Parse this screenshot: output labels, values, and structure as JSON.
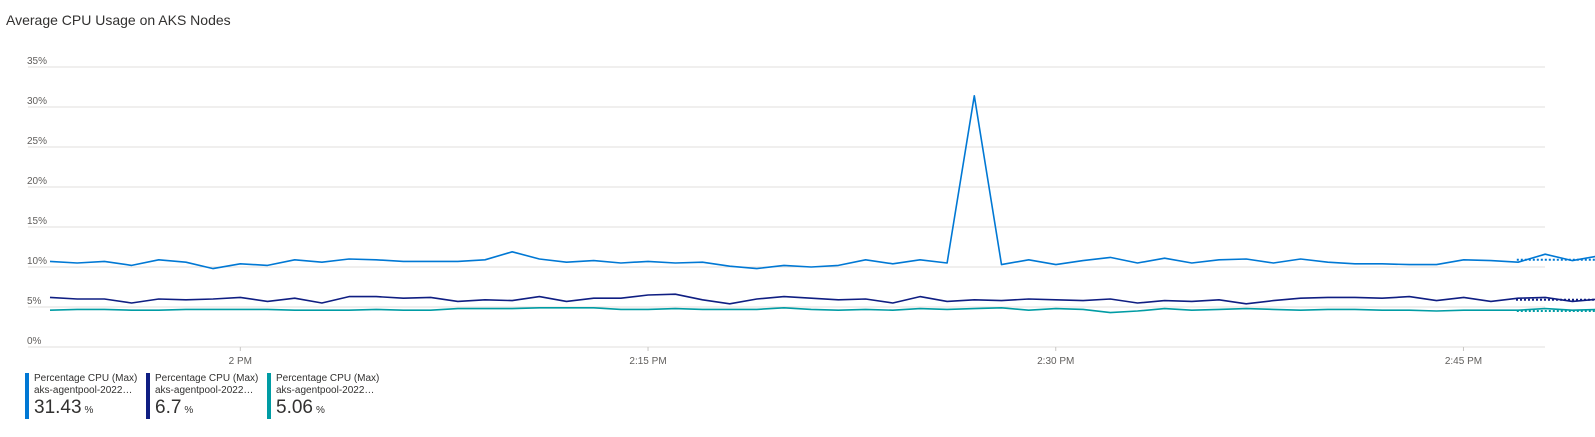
{
  "chart_data": {
    "type": "line",
    "title": "Average CPU Usage on AKS Nodes",
    "yticks": [
      "0%",
      "5%",
      "10%",
      "15%",
      "20%",
      "25%",
      "30%",
      "35%"
    ],
    "ylim": [
      0,
      35
    ],
    "xticks": [
      {
        "t": 14.0,
        "label": "2 PM"
      },
      {
        "t": 14.25,
        "label": "2:15 PM"
      },
      {
        "t": 14.5,
        "label": "2:30 PM"
      },
      {
        "t": 14.75,
        "label": "2:45 PM"
      }
    ],
    "grid": true,
    "legend_position": "bottom-left",
    "series": [
      {
        "name": "Percentage CPU (Max)",
        "resource": "aks-agentpool-202229...",
        "color": "#0078d4",
        "summary_value": "31.43",
        "unit": "%",
        "values": [
          10.7,
          10.5,
          10.7,
          10.2,
          10.9,
          10.6,
          9.8,
          10.4,
          10.2,
          10.9,
          10.6,
          11.0,
          10.9,
          10.7,
          10.7,
          10.7,
          10.9,
          11.9,
          11.0,
          10.6,
          10.8,
          10.5,
          10.7,
          10.5,
          10.6,
          10.1,
          9.8,
          10.2,
          10.0,
          10.2,
          10.9,
          10.4,
          10.9,
          10.5,
          31.4,
          10.3,
          10.9,
          10.3,
          10.8,
          11.2,
          10.5,
          11.1,
          10.5,
          10.9,
          11.0,
          10.5,
          11.0,
          10.6,
          10.4,
          10.4,
          10.3,
          10.3,
          10.9,
          10.8,
          10.6,
          11.6,
          10.8,
          11.4,
          10.9
        ]
      },
      {
        "name": "Percentage CPU (Max)",
        "resource": "aks-agentpool-202229...",
        "color": "#0f1e82",
        "summary_value": "6.7",
        "unit": "%",
        "values": [
          6.2,
          6.0,
          6.0,
          5.5,
          6.0,
          5.9,
          6.0,
          6.2,
          5.7,
          6.1,
          5.5,
          6.3,
          6.3,
          6.1,
          6.2,
          5.7,
          5.9,
          5.8,
          6.3,
          5.7,
          6.1,
          6.1,
          6.5,
          6.6,
          5.9,
          5.4,
          6.0,
          6.3,
          6.1,
          5.9,
          6.0,
          5.5,
          6.3,
          5.7,
          5.9,
          5.8,
          6.0,
          5.9,
          5.8,
          6.0,
          5.5,
          5.8,
          5.7,
          5.9,
          5.4,
          5.8,
          6.1,
          6.2,
          6.2,
          6.1,
          6.3,
          5.8,
          6.2,
          5.7,
          6.1,
          6.2,
          5.7,
          6.0,
          5.5,
          5.9
        ]
      },
      {
        "name": "Percentage CPU (Max)",
        "resource": "aks-agentpool-202229...",
        "color": "#009ca4",
        "summary_value": "5.06",
        "unit": "%",
        "values": [
          4.6,
          4.7,
          4.7,
          4.6,
          4.6,
          4.7,
          4.7,
          4.7,
          4.7,
          4.6,
          4.6,
          4.6,
          4.7,
          4.6,
          4.6,
          4.8,
          4.8,
          4.8,
          4.9,
          4.9,
          4.9,
          4.7,
          4.7,
          4.8,
          4.7,
          4.7,
          4.7,
          4.9,
          4.7,
          4.6,
          4.7,
          4.6,
          4.8,
          4.7,
          4.8,
          4.9,
          4.6,
          4.8,
          4.7,
          4.3,
          4.5,
          4.8,
          4.6,
          4.7,
          4.8,
          4.7,
          4.6,
          4.7,
          4.7,
          4.6,
          4.6,
          4.5,
          4.6,
          4.6,
          4.6,
          4.8,
          4.6,
          4.7,
          4.5
        ]
      }
    ],
    "x_start": 13.8833,
    "x_step": 0.01667
  }
}
